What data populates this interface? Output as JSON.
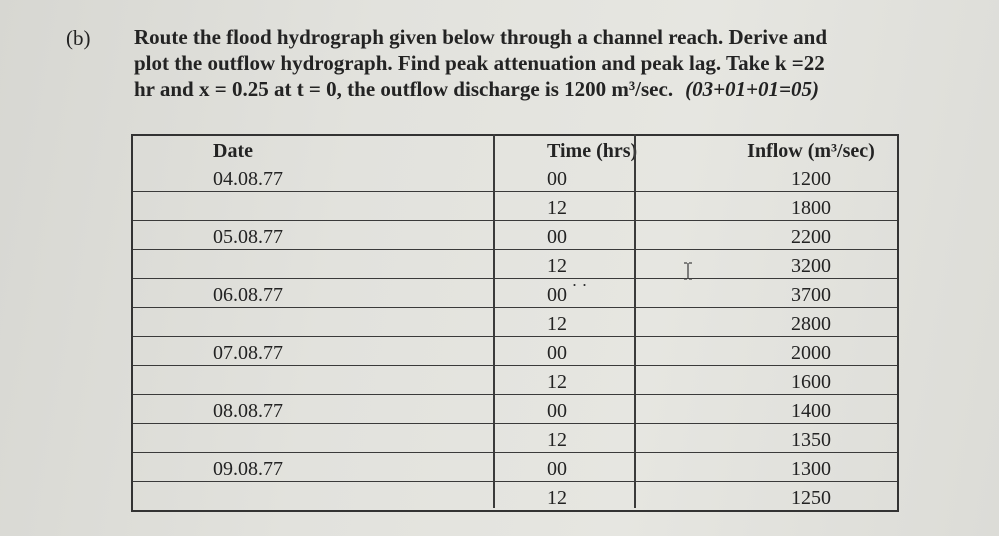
{
  "question": {
    "number": "(b)",
    "line1": "Route the flood hydrograph given below through a channel reach. Derive and",
    "line2": "plot the outflow hydrograph. Find peak attenuation and peak lag. Take k =22",
    "line3": "hr and x = 0.25 at t = 0, the outflow discharge is 1200 m³/sec.",
    "marks": "(03+01+01=05)"
  },
  "table": {
    "headers": {
      "date": "Date",
      "time": "Time (hrs)",
      "inflow": "Inflow (m³/sec)"
    },
    "rows": [
      {
        "date": "04.08.77",
        "time": "00",
        "inflow": "1200"
      },
      {
        "date": "",
        "time": "12",
        "inflow": "1800"
      },
      {
        "date": "05.08.77",
        "time": "00",
        "inflow": "2200"
      },
      {
        "date": "",
        "time": "12",
        "inflow": "3200"
      },
      {
        "date": "06.08.77",
        "time": "00",
        "inflow": "3700"
      },
      {
        "date": "",
        "time": "12",
        "inflow": "2800"
      },
      {
        "date": "07.08.77",
        "time": "00",
        "inflow": "2000"
      },
      {
        "date": "",
        "time": "12",
        "inflow": "1600"
      },
      {
        "date": "08.08.77",
        "time": "00",
        "inflow": "1400"
      },
      {
        "date": "",
        "time": "12",
        "inflow": "1350"
      },
      {
        "date": "09.08.77",
        "time": "00",
        "inflow": "1300"
      },
      {
        "date": "",
        "time": "12",
        "inflow": "1250"
      }
    ]
  },
  "stray_marks": {
    "dots": ". ."
  },
  "icons": {
    "cursor": "text-cursor-icon"
  }
}
